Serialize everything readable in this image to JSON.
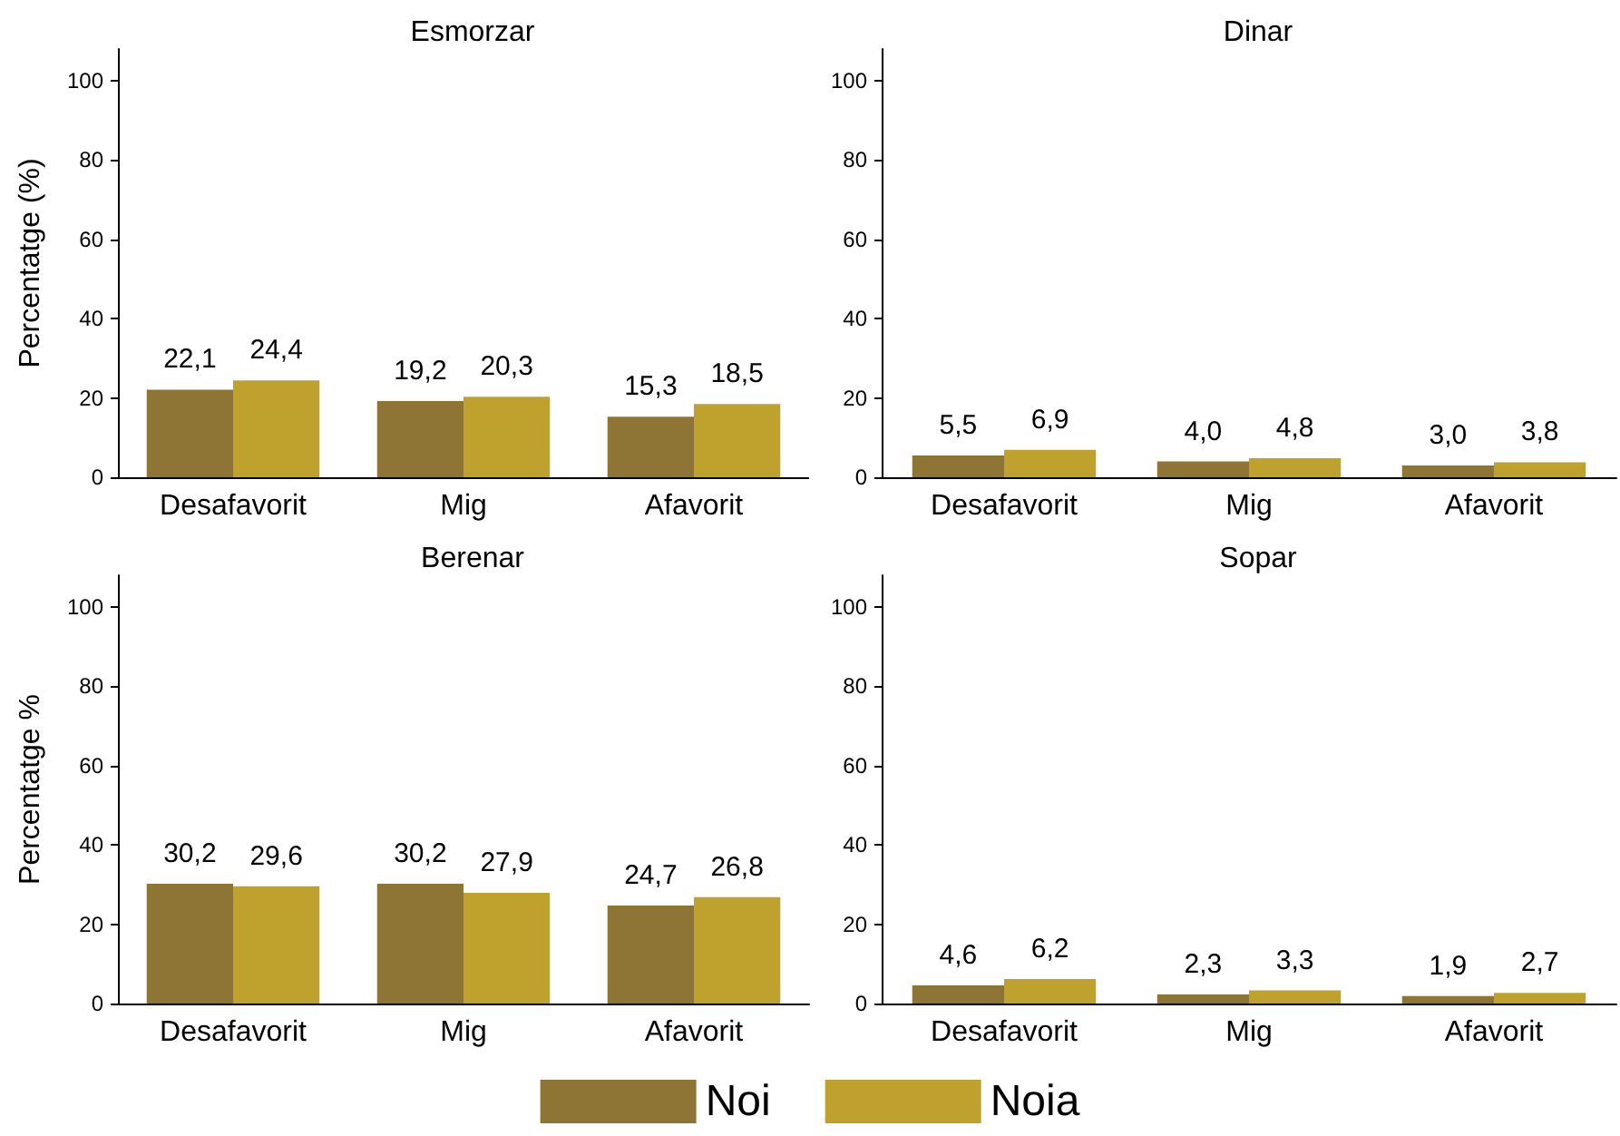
{
  "chart_data": [
    {
      "type": "bar",
      "title": "Esmorzar",
      "ylabel": "Percentatge (%)",
      "categories": [
        "Desafavorit",
        "Mig",
        "Afavorit"
      ],
      "series": [
        {
          "color": "#8f7535",
          "values": [
            22.1,
            19.2,
            15.3
          ],
          "value_labels": [
            "22,1",
            "19,2",
            "15,3"
          ]
        },
        {
          "color": "#bfa22e",
          "values": [
            24.4,
            20.3,
            18.5
          ],
          "value_labels": [
            "24,4",
            "20,3",
            "18,5"
          ]
        }
      ],
      "ylim": [
        0,
        108
      ],
      "yticks": [
        0,
        20,
        40,
        60,
        80,
        100
      ],
      "grid": false,
      "legend": false
    },
    {
      "type": "bar",
      "title": "Dinar",
      "categories": [
        "Desafavorit",
        "Mig",
        "Afavorit"
      ],
      "series": [
        {
          "color": "#8f7535",
          "values": [
            5.5,
            4.0,
            3.0
          ],
          "value_labels": [
            "5,5",
            "4,0",
            "3,0"
          ]
        },
        {
          "color": "#bfa22e",
          "values": [
            6.9,
            4.8,
            3.8
          ],
          "value_labels": [
            "6,9",
            "4,8",
            "3,8"
          ]
        }
      ],
      "ylim": [
        0,
        108
      ],
      "yticks": [
        0,
        20,
        40,
        60,
        80,
        100
      ],
      "grid": false,
      "legend": false
    },
    {
      "type": "bar",
      "title": "Berenar",
      "ylabel": "Percentatge %",
      "categories": [
        "Desafavorit",
        "Mig",
        "Afavorit"
      ],
      "series": [
        {
          "name": "Noi",
          "color": "#8f7535",
          "values": [
            30.2,
            30.2,
            24.7
          ],
          "value_labels": [
            "30,2",
            "30,2",
            "24,7"
          ]
        },
        {
          "name": "Noia",
          "color": "#bfa22e",
          "values": [
            29.6,
            27.9,
            26.8
          ],
          "value_labels": [
            "29,6",
            "27,9",
            "26,8"
          ]
        }
      ],
      "ylim": [
        0,
        108
      ],
      "yticks": [
        0,
        20,
        40,
        60,
        80,
        100
      ],
      "grid": false,
      "legend": "bottom"
    },
    {
      "type": "bar",
      "title": "Sopar",
      "categories": [
        "Desafavorit",
        "Mig",
        "Afavorit"
      ],
      "series": [
        {
          "color": "#8f7535",
          "values": [
            4.6,
            2.3,
            1.9
          ],
          "value_labels": [
            "4,6",
            "2,3",
            "1,9"
          ]
        },
        {
          "color": "#bfa22e",
          "values": [
            6.2,
            3.3,
            2.7
          ],
          "value_labels": [
            "6,2",
            "3,3",
            "2,7"
          ]
        }
      ],
      "ylim": [
        0,
        108
      ],
      "yticks": [
        0,
        20,
        40,
        60,
        80,
        100
      ],
      "grid": false,
      "legend": false
    }
  ]
}
